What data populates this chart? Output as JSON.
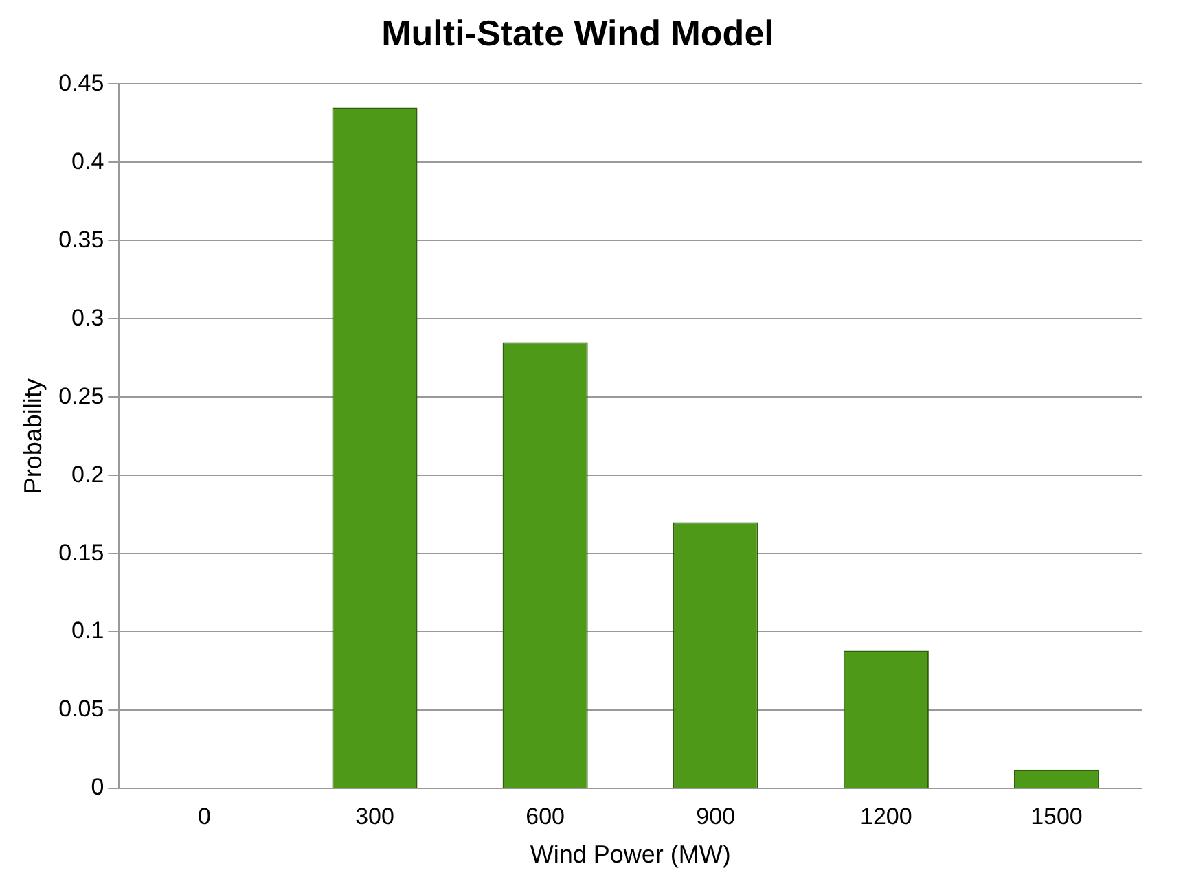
{
  "chart_data": {
    "type": "bar",
    "title": "Multi-State Wind Model",
    "xlabel": "Wind Power (MW)",
    "ylabel": "Probability",
    "categories": [
      "0",
      "300",
      "600",
      "900",
      "1200",
      "1500"
    ],
    "values": [
      0,
      0.435,
      0.285,
      0.17,
      0.088,
      0.012
    ],
    "color": "#4e9a18",
    "ylim": [
      0,
      0.45
    ],
    "yticks": [
      0,
      0.05,
      0.1,
      0.15,
      0.2,
      0.25,
      0.3,
      0.35,
      0.4,
      0.45
    ],
    "grid": "y",
    "legend": false
  }
}
